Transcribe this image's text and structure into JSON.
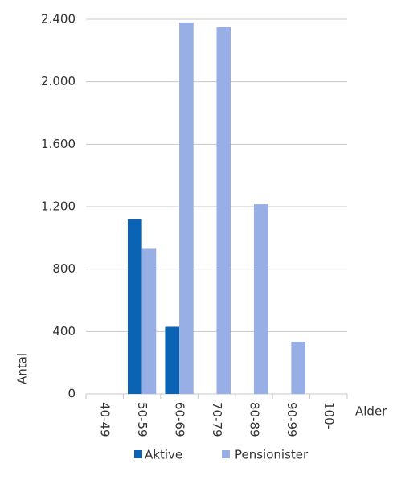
{
  "chart_data": {
    "type": "bar",
    "categories": [
      "40-49",
      "50-59",
      "60-69",
      "70-79",
      "80-89",
      "90-99",
      "100-"
    ],
    "series": [
      {
        "name": "Aktive",
        "color": "#0b63b3",
        "values": [
          0,
          1120,
          430,
          0,
          0,
          0,
          0
        ]
      },
      {
        "name": "Pensionister",
        "color": "#97afe4",
        "values": [
          0,
          930,
          2380,
          2350,
          1215,
          335,
          0
        ]
      }
    ],
    "ylim": [
      0,
      2400
    ],
    "yticks": [
      0,
      400,
      800,
      {
        "value": 1200,
        "label": "1.200"
      },
      {
        "value": 1600,
        "label": "1.600"
      },
      {
        "value": 2000,
        "label": "2.000"
      },
      {
        "value": 2400,
        "label": "2.400"
      }
    ],
    "ylabel": "Antal",
    "xlabel": "Alder",
    "grid": true,
    "legend": "bottom"
  }
}
